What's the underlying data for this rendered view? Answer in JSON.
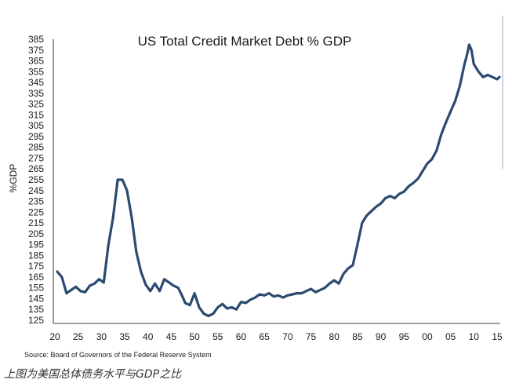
{
  "chart_data": {
    "type": "line",
    "title": "US Total Credit Market Debt % GDP",
    "ylabel": "%GDP",
    "xlabel": "",
    "ylim": [
      125,
      385
    ],
    "xlim": [
      1920,
      2016
    ],
    "y_ticks": [
      385,
      375,
      365,
      355,
      345,
      335,
      325,
      315,
      305,
      295,
      285,
      275,
      265,
      255,
      245,
      235,
      225,
      215,
      205,
      195,
      185,
      175,
      165,
      155,
      145,
      135,
      125
    ],
    "x_ticks": [
      {
        "year": 1920,
        "label": "20"
      },
      {
        "year": 1925,
        "label": "25"
      },
      {
        "year": 1930,
        "label": "30"
      },
      {
        "year": 1935,
        "label": "35"
      },
      {
        "year": 1940,
        "label": "40"
      },
      {
        "year": 1945,
        "label": "45"
      },
      {
        "year": 1950,
        "label": "50"
      },
      {
        "year": 1955,
        "label": "55"
      },
      {
        "year": 1960,
        "label": "60"
      },
      {
        "year": 1965,
        "label": "65"
      },
      {
        "year": 1970,
        "label": "70"
      },
      {
        "year": 1975,
        "label": "75"
      },
      {
        "year": 1980,
        "label": "80"
      },
      {
        "year": 1985,
        "label": "85"
      },
      {
        "year": 1990,
        "label": "90"
      },
      {
        "year": 1995,
        "label": "95"
      },
      {
        "year": 2000,
        "label": "00"
      },
      {
        "year": 2005,
        "label": "05"
      },
      {
        "year": 2010,
        "label": "10"
      },
      {
        "year": 2015,
        "label": "15"
      }
    ],
    "grid": false,
    "line_color": "#2b4a6f",
    "series": [
      {
        "x": [
          1920.5,
          1921.5,
          1922.5,
          1923.5,
          1924.5,
          1925.5,
          1926.5,
          1927.5,
          1928.5,
          1929.5,
          1930.5,
          1931.5,
          1932.5,
          1933.5,
          1934.0,
          1934.5,
          1935.5,
          1936.5,
          1937.5,
          1938.5,
          1939.5,
          1940.5,
          1941.5,
          1942.5,
          1943.5,
          1944.5,
          1945.5,
          1946.5,
          1947.5,
          1948.0,
          1949.0,
          1950.0,
          1951.0,
          1952.0,
          1953.0,
          1954.0,
          1955.0,
          1956.0,
          1957.0,
          1958.0,
          1959.0,
          1960.0,
          1961.0,
          1962.0,
          1963.0,
          1964.0,
          1965.0,
          1966.0,
          1967.0,
          1968.0,
          1969.0,
          1970.0,
          1971.0,
          1972.0,
          1973.0,
          1974.0,
          1975.0,
          1976.0,
          1977.0,
          1978.0,
          1979.0,
          1980.0,
          1981.0,
          1982.0,
          1983.0,
          1984.0,
          1985.0,
          1986.0,
          1987.0,
          1988.0,
          1989.0,
          1990.0,
          1991.0,
          1992.0,
          1993.0,
          1994.0,
          1995.0,
          1996.0,
          1997.0,
          1998.0,
          1999.0,
          2000.0,
          2001.0,
          2002.0,
          2003.0,
          2004.0,
          2005.0,
          2006.0,
          2007.0,
          2008.0,
          2008.5,
          2009.0,
          2009.5,
          2010.0,
          2011.0,
          2012.0,
          2013.0,
          2014.0,
          2015.0,
          2015.5
        ],
        "y": [
          170,
          165,
          150,
          153,
          156,
          152,
          151,
          157,
          159,
          163,
          160,
          195,
          220,
          255,
          255,
          255,
          245,
          220,
          188,
          170,
          158,
          152,
          159,
          152,
          163,
          160,
          157,
          155,
          146,
          141,
          139,
          150,
          137,
          131,
          129,
          131,
          137,
          140,
          136,
          137,
          135,
          142,
          141,
          144,
          146,
          149,
          148,
          150,
          147,
          148,
          146,
          148,
          149,
          150,
          150,
          152,
          154,
          151,
          153,
          155,
          159,
          162,
          159,
          168,
          173,
          176,
          195,
          215,
          222,
          226,
          230,
          233,
          238,
          240,
          238,
          242,
          244,
          249,
          252,
          256,
          263,
          270,
          274,
          282,
          297,
          308,
          318,
          328,
          342,
          362,
          370,
          380,
          375,
          362,
          355,
          350,
          352,
          350,
          348,
          350
        ]
      }
    ],
    "source": "Source: Board of Governors of the Federal Reserve System",
    "caption": "上图为美国总体债务水平与GDP之比"
  }
}
